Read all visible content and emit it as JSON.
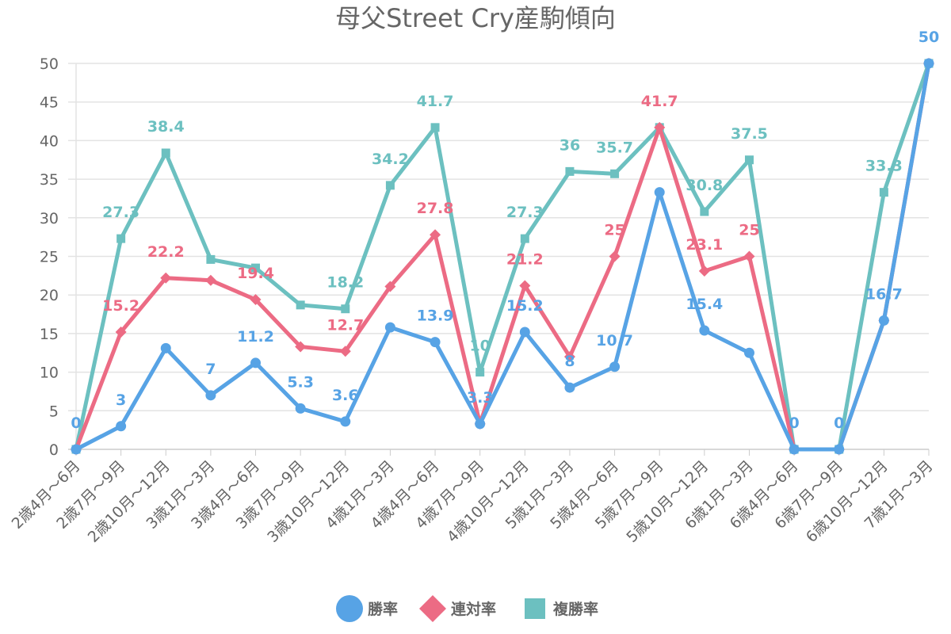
{
  "chart_data": {
    "type": "line",
    "title": "母父Street Cry産駒傾向",
    "xlabel": "",
    "ylabel": "",
    "ylim": [
      0,
      50
    ],
    "yticks": [
      0,
      5,
      10,
      15,
      20,
      25,
      30,
      35,
      40,
      45,
      50
    ],
    "grid": true,
    "legend_position": "bottom",
    "categories": [
      "2歳4月～6月",
      "2歳7月～9月",
      "2歳10月～12月",
      "3歳1月～3月",
      "3歳4月～6月",
      "3歳7月～9月",
      "3歳10月～12月",
      "4歳1月～3月",
      "4歳4月～6月",
      "4歳7月～9月",
      "4歳10月～12月",
      "5歳1月～3月",
      "5歳4月～6月",
      "5歳7月～9月",
      "5歳10月～12月",
      "6歳1月～3月",
      "6歳4月～6月",
      "6歳7月～9月",
      "6歳10月～12月",
      "7歳1月～3月"
    ],
    "series": [
      {
        "name": "複勝率",
        "color": "#6cc0c0",
        "marker": "square",
        "values": [
          0,
          27.3,
          38.4,
          24.6,
          23.5,
          18.7,
          18.2,
          34.2,
          41.7,
          10,
          27.3,
          36,
          35.7,
          41.7,
          30.8,
          37.5,
          0,
          0,
          33.3,
          50
        ],
        "labels": [
          null,
          "27.3",
          "38.4",
          null,
          null,
          null,
          "18.2",
          "34.2",
          "41.7",
          "10",
          "27.3",
          "36",
          "35.7",
          null,
          "30.8",
          "37.5",
          null,
          null,
          "33.3",
          null
        ]
      },
      {
        "name": "連対率",
        "color": "#ec6b84",
        "marker": "diamond",
        "values": [
          0,
          15.2,
          22.2,
          21.9,
          19.4,
          13.3,
          12.7,
          21.1,
          27.8,
          3.3,
          21.2,
          12,
          25,
          41.7,
          23.1,
          25,
          0,
          0,
          16.7,
          50
        ],
        "labels": [
          null,
          "15.2",
          "22.2",
          null,
          "19.4",
          null,
          "12.7",
          null,
          "27.8",
          null,
          "21.2",
          null,
          "25",
          "41.7",
          "23.1",
          "25",
          null,
          null,
          null,
          null
        ]
      },
      {
        "name": "勝率",
        "color": "#57a3e5",
        "marker": "circle",
        "values": [
          0,
          3,
          13.1,
          7,
          11.2,
          5.3,
          3.6,
          15.8,
          13.9,
          3.3,
          15.2,
          8,
          10.7,
          33.3,
          15.4,
          12.5,
          0,
          0,
          16.7,
          50
        ],
        "labels": [
          "0",
          "3",
          null,
          "7",
          "11.2",
          "5.3",
          "3.6",
          null,
          "13.9",
          "3.3",
          "15.2",
          "8",
          "10.7",
          null,
          "15.4",
          null,
          "0",
          "0",
          "16.7",
          "50"
        ]
      }
    ],
    "legend": [
      "勝率",
      "連対率",
      "複勝率"
    ]
  }
}
